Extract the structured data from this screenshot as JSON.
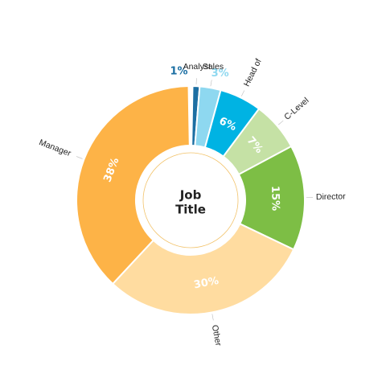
{
  "chart_data": {
    "type": "pie",
    "style": "donut",
    "center_label": [
      "Job",
      "Title"
    ],
    "slices": [
      {
        "category": "Analyst",
        "value": 1,
        "label": "1%",
        "color": "#1C6FA3",
        "label_color": "#1C6FA3"
      },
      {
        "category": "Sales",
        "value": 3,
        "label": "3%",
        "color": "#8ED8F0",
        "label_color": "#8ED8F0"
      },
      {
        "category": "Head of",
        "value": 6,
        "label": "6%",
        "color": "#00B3E3",
        "label_color": "#ffffff"
      },
      {
        "category": "C-Level",
        "value": 7,
        "label": "7%",
        "color": "#C5E1A5",
        "label_color": "#ffffff"
      },
      {
        "category": "Director",
        "value": 15,
        "label": "15%",
        "color": "#7DBE45",
        "label_color": "#ffffff"
      },
      {
        "category": "Other",
        "value": 30,
        "label": "30%",
        "color": "#FFDCA0",
        "label_color": "#ffffff"
      },
      {
        "category": "Manager",
        "value": 38,
        "label": "38%",
        "color": "#FDB347",
        "label_color": "#ffffff"
      }
    ],
    "center_ring_color": "#F2C36B"
  }
}
